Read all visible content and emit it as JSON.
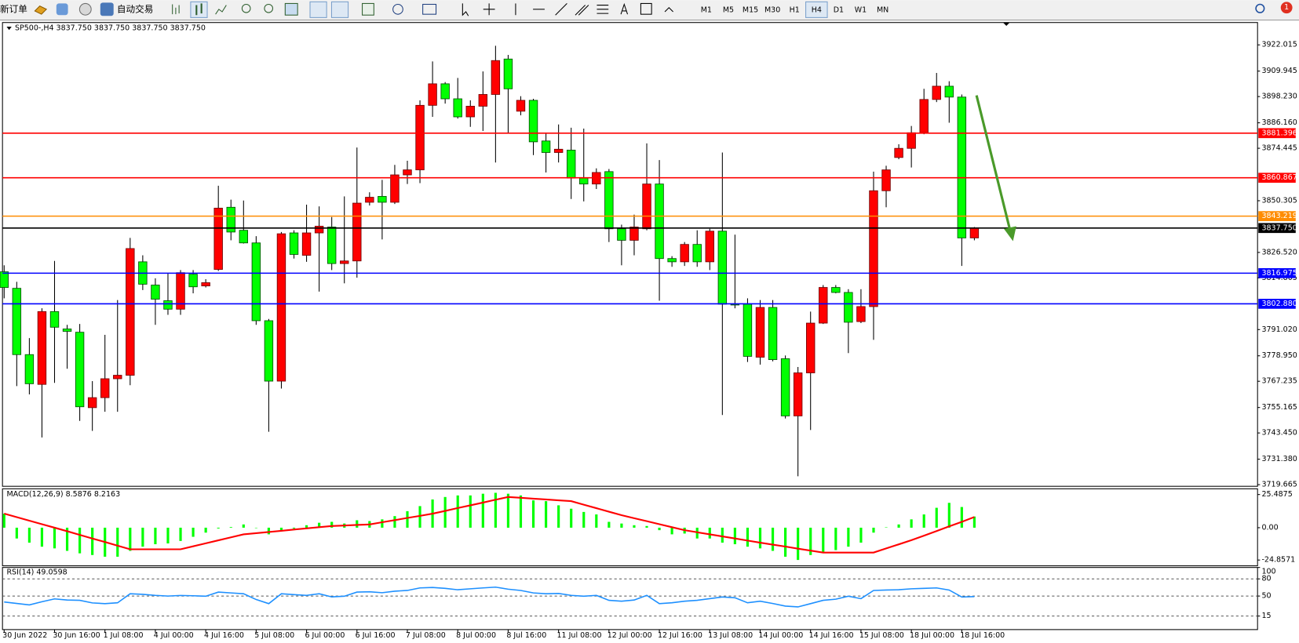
{
  "toolbar": {
    "new_order": "新订单",
    "auto_trading": "自动交易",
    "timeframes": [
      "M1",
      "M5",
      "M15",
      "M30",
      "H1",
      "H4",
      "D1",
      "W1",
      "MN"
    ],
    "active_timeframe": 5,
    "notifications": 1
  },
  "chart_data": [
    {
      "type": "candlestick",
      "title": "SP500-,H4 3837.750 3837.750 3837.750 3837.750",
      "categories": [
        "30 Jun 2022",
        null,
        null,
        null,
        "30 Jun 16:00",
        null,
        null,
        null,
        "1 Jul 08:00",
        null,
        null,
        null,
        "4 Jul 00:00",
        null,
        null,
        null,
        "4 Jul 16:00",
        null,
        null,
        null,
        "5 Jul 08:00",
        null,
        null,
        null,
        "6 Jul 00:00",
        null,
        null,
        null,
        "6 Jul 16:00",
        null,
        null,
        null,
        "7 Jul 08:00",
        null,
        null,
        null,
        "8 Jul 00:00",
        null,
        null,
        null,
        "8 Jul 16:00",
        null,
        null,
        null,
        "11 Jul 08:00",
        null,
        null,
        null,
        "12 Jul 00:00",
        null,
        null,
        null,
        "12 Jul 16:00",
        null,
        null,
        null,
        "13 Jul 08:00",
        null,
        null,
        null,
        "14 Jul 00:00",
        null,
        null,
        null,
        "14 Jul 16:00",
        null,
        null,
        null,
        "15 Jul 08:00",
        null,
        null,
        null,
        "18 Jul 00:00",
        null,
        null,
        null,
        "18 Jul 16:00",
        null
      ],
      "open": [
        3817.6,
        3810.0,
        3779.5,
        3765.8,
        3799.3,
        3791.3,
        3789.8,
        3755.1,
        3759.7,
        3768.4,
        3770.0,
        3822.2,
        3811.5,
        3804.3,
        3800.4,
        3816.5,
        3811.1,
        3818.7,
        3847.3,
        3836.7,
        3830.9,
        3795.1,
        3767.3,
        3835.5,
        3825.2,
        3835.5,
        3838.2,
        3821.4,
        3822.6,
        3849.6,
        3852.3,
        3849.6,
        3862.2,
        3864.5,
        3894.2,
        3904.1,
        3897.2,
        3888.9,
        3893.8,
        3899.2,
        3915.5,
        3891.5,
        3896.5,
        3877.8,
        3872.5,
        3873.6,
        3860.7,
        3858.0,
        3863.7,
        3837.4,
        3832.1,
        3837.4,
        3858.0,
        3823.7,
        3822.2,
        3830.2,
        3822.2,
        3836.3,
        3802.7,
        3802.7,
        3778.3,
        3801.2,
        3777.6,
        3751.3,
        3771.1,
        3794.0,
        3810.4,
        3808.1,
        3794.7,
        3801.6,
        3854.9,
        3870.2,
        3874.4,
        3881.6,
        3896.9,
        3903.0,
        3898.0,
        3833.2
      ],
      "high": [
        3820.6,
        3813.0,
        3787.1,
        3800.8,
        3822.6,
        3793.2,
        3793.6,
        3767.3,
        3788.6,
        3804.6,
        3833.2,
        3825.2,
        3814.6,
        3816.8,
        3818.4,
        3818.4,
        3814.2,
        3857.2,
        3850.8,
        3850.4,
        3834.0,
        3795.9,
        3835.9,
        3836.7,
        3848.5,
        3847.7,
        3842.8,
        3852.3,
        3874.8,
        3854.2,
        3859.9,
        3866.8,
        3868.7,
        3896.5,
        3914.4,
        3904.9,
        3906.8,
        3896.5,
        3909.8,
        3921.6,
        3917.4,
        3898.4,
        3897.2,
        3881.6,
        3885.4,
        3883.9,
        3883.5,
        3865.2,
        3864.9,
        3839.3,
        3843.9,
        3876.7,
        3869.0,
        3824.8,
        3831.3,
        3836.7,
        3837.4,
        3872.5,
        3834.7,
        3805.4,
        3804.6,
        3804.6,
        3779.1,
        3773.8,
        3799.3,
        3811.5,
        3811.5,
        3809.6,
        3809.6,
        3863.7,
        3866.4,
        3876.3,
        3884.7,
        3901.8,
        3909.1,
        3905.3,
        3899.2,
        3838.2
      ],
      "low": [
        3805.4,
        3765.0,
        3761.2,
        3741.4,
        3766.5,
        3773.0,
        3749.0,
        3744.4,
        3753.2,
        3753.2,
        3765.4,
        3809.2,
        3793.2,
        3797.8,
        3797.8,
        3807.7,
        3810.4,
        3818.0,
        3832.1,
        3830.6,
        3793.2,
        3744.0,
        3763.9,
        3823.7,
        3822.2,
        3808.5,
        3818.4,
        3812.3,
        3814.9,
        3848.1,
        3832.5,
        3848.8,
        3858.0,
        3858.4,
        3888.9,
        3895.0,
        3888.1,
        3884.3,
        3882.4,
        3867.9,
        3881.6,
        3889.6,
        3871.3,
        3863.3,
        3867.9,
        3851.1,
        3850.0,
        3855.7,
        3831.3,
        3820.6,
        3825.2,
        3836.7,
        3804.3,
        3819.9,
        3820.3,
        3819.9,
        3818.4,
        3751.7,
        3800.8,
        3776.1,
        3774.9,
        3776.4,
        3750.1,
        3723.5,
        3744.8,
        3793.6,
        3807.7,
        3780.2,
        3794.0,
        3786.3,
        3847.3,
        3869.4,
        3865.6,
        3880.9,
        3895.7,
        3886.2,
        3820.3,
        3832.1
      ],
      "close": [
        3810.4,
        3779.5,
        3766.1,
        3799.3,
        3792.1,
        3790.2,
        3755.5,
        3759.7,
        3768.4,
        3770.0,
        3828.3,
        3811.9,
        3805.0,
        3800.4,
        3817.2,
        3810.7,
        3812.6,
        3846.9,
        3835.9,
        3830.9,
        3795.1,
        3767.3,
        3835.1,
        3825.6,
        3835.5,
        3838.6,
        3821.4,
        3822.6,
        3849.2,
        3851.9,
        3849.6,
        3862.2,
        3864.5,
        3894.2,
        3904.1,
        3897.2,
        3888.9,
        3893.8,
        3899.2,
        3914.8,
        3901.8,
        3896.5,
        3877.4,
        3872.5,
        3874.0,
        3860.7,
        3858.0,
        3863.3,
        3837.4,
        3832.1,
        3838.2,
        3858.0,
        3823.7,
        3822.2,
        3830.2,
        3822.2,
        3836.3,
        3802.7,
        3802.4,
        3778.7,
        3801.2,
        3777.2,
        3751.3,
        3771.1,
        3794.0,
        3810.4,
        3808.1,
        3794.4,
        3801.6,
        3854.9,
        3864.5,
        3874.4,
        3881.6,
        3896.9,
        3903.0,
        3898.0,
        3833.2,
        3837.75
      ],
      "up_color": "#ff0000",
      "down_color": "#00ff00",
      "ylim": [
        3718.9,
        3932.3
      ],
      "yticks": [
        {
          "value": 3922.015,
          "label": "3922.015"
        },
        {
          "value": 3909.945,
          "label": "3909.945"
        },
        {
          "value": 3898.23,
          "label": "3898.230"
        },
        {
          "value": 3886.16,
          "label": "3886.160"
        },
        {
          "value": 3874.445,
          "label": "3874.445"
        },
        {
          "value": 3850.305,
          "label": "3850.305"
        },
        {
          "value": 3826.52,
          "label": "3826.520"
        },
        {
          "value": 3814.805,
          "label": "3814.805"
        },
        {
          "value": 3791.02,
          "label": "3791.020"
        },
        {
          "value": 3778.95,
          "label": "3778.950"
        },
        {
          "value": 3767.235,
          "label": "3767.235"
        },
        {
          "value": 3755.165,
          "label": "3755.165"
        },
        {
          "value": 3743.45,
          "label": "3743.450"
        },
        {
          "value": 3731.38,
          "label": "3731.380"
        },
        {
          "value": 3719.665,
          "label": "3719.665"
        }
      ],
      "levels": [
        {
          "value": 3881.396,
          "label": "3881.396",
          "color": "#ff0000"
        },
        {
          "value": 3860.867,
          "label": "3860.867",
          "color": "#ff0000"
        },
        {
          "value": 3843.219,
          "label": "3843.219",
          "color": "#ff8c00"
        },
        {
          "value": 3837.75,
          "label": "3837.750",
          "color": "#000000"
        },
        {
          "value": 3816.975,
          "label": "3816.975",
          "color": "#0000ff"
        },
        {
          "value": 3802.88,
          "label": "3802.880",
          "color": "#0000ff"
        }
      ]
    },
    {
      "type": "macd",
      "title": "MACD(12,26,9) 8.5876 8.2163",
      "series": [
        {
          "name": "MACD",
          "color": "#00ff00",
          "values": [
            10.8,
            -8.3,
            -11.5,
            -14.6,
            -15.9,
            -17.8,
            -19.7,
            -21.0,
            -22.3,
            -22.3,
            -17.8,
            -14.6,
            -12.7,
            -12.1,
            -10.2,
            -7.0,
            -3.8,
            -0.6,
            0.5,
            2.5,
            -0.3,
            -5.1,
            -1.9,
            -0.6,
            1.9,
            3.8,
            4.5,
            3.2,
            5.7,
            5.1,
            6.4,
            8.9,
            12.7,
            16.6,
            21.7,
            23.6,
            24.8,
            24.8,
            26.1,
            26.8,
            26.1,
            24.8,
            21.0,
            20.4,
            17.2,
            14.6,
            12.1,
            10.2,
            4.5,
            3.2,
            1.9,
            1.3,
            -1.9,
            -5.1,
            -4.5,
            -8.3,
            -8.3,
            -11.5,
            -12.7,
            -14.6,
            -15.9,
            -17.8,
            -22.3,
            -24.8,
            -21.0,
            -19.1,
            -17.2,
            -14.6,
            -11.5,
            -3.8,
            0.3,
            2.5,
            6.4,
            10.2,
            15.3,
            19.1,
            15.9,
            8.5876
          ]
        },
        {
          "name": "Signal",
          "color": "#ff0000",
          "values": [
            10.8,
            8.1,
            5.4,
            2.7,
            0.0,
            -2.7,
            -5.5,
            -8.3,
            -11.0,
            -13.8,
            -16.6,
            -16.6,
            -16.6,
            -16.6,
            -16.6,
            -14.3,
            -12.0,
            -9.7,
            -7.4,
            -5.1,
            -4.2,
            -3.3,
            -2.4,
            -1.4,
            -0.5,
            0.4,
            1.3,
            1.7,
            2.1,
            2.5,
            4.2,
            5.8,
            7.5,
            9.1,
            10.8,
            12.9,
            15.1,
            17.2,
            19.3,
            21.5,
            23.6,
            23.0,
            22.3,
            21.7,
            21.0,
            20.4,
            17.7,
            15.0,
            12.3,
            9.6,
            7.3,
            5.0,
            2.7,
            0.4,
            -1.9,
            -3.5,
            -5.1,
            -6.7,
            -8.3,
            -9.9,
            -11.5,
            -13.0,
            -14.5,
            -16.1,
            -17.6,
            -19.1,
            -19.1,
            -19.1,
            -19.1,
            -19.1,
            -15.9,
            -12.8,
            -9.6,
            -6.1,
            -2.6,
            1.0,
            4.5,
            8.2163
          ]
        }
      ],
      "ylim": [
        -29.3,
        29.9
      ],
      "yticks": [
        25.4875,
        {
          "value": 0,
          "label": "0.00"
        },
        -24.8571
      ]
    },
    {
      "type": "rsi",
      "title": "RSI(14) 49.0598",
      "series": [
        {
          "name": "RSI",
          "color": "#1e90ff",
          "values": [
            39.6,
            37.0,
            34.5,
            40.0,
            45.0,
            43.0,
            42.5,
            38.0,
            36.7,
            38.2,
            54.0,
            53.0,
            51.2,
            50.0,
            51.0,
            50.5,
            49.7,
            56.9,
            55.5,
            54.0,
            43.9,
            36.7,
            54.0,
            52.5,
            51.2,
            54.0,
            48.5,
            49.7,
            56.9,
            57.5,
            55.8,
            58.5,
            59.8,
            64.2,
            65.0,
            63.5,
            61.0,
            62.7,
            64.2,
            65.6,
            62.0,
            59.8,
            55.5,
            54.0,
            54.5,
            51.2,
            49.7,
            51.2,
            42.5,
            41.0,
            43.0,
            51.2,
            36.7,
            38.2,
            41.0,
            42.5,
            45.4,
            48.3,
            47.0,
            38.2,
            41.0,
            37.0,
            32.4,
            31.0,
            36.7,
            42.5,
            44.5,
            49.7,
            45.4,
            59.8,
            60.5,
            61.0,
            62.7,
            63.5,
            64.2,
            60.5,
            48.3,
            49.0598
          ]
        }
      ],
      "ylim": [
        0,
        100
      ],
      "yticks": [
        100,
        80,
        50,
        15
      ],
      "grid": "dashed"
    }
  ]
}
